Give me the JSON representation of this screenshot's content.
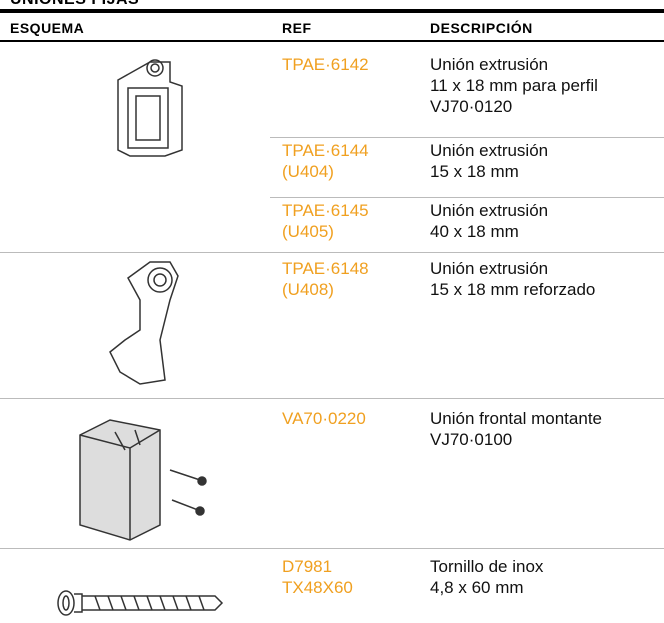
{
  "section_title": "UNIONES FIJAS",
  "table": {
    "headers": [
      "ESQUEMA",
      "REF",
      "DESCRIPCIÓN"
    ],
    "rows": [
      {
        "ref": [
          "TPAE·6142"
        ],
        "description": [
          "Unión extrusión",
          "11 x 18 mm para perfil",
          "VJ70·0120"
        ]
      },
      {
        "ref": [
          "TPAE·6144",
          "(U404)"
        ],
        "description": [
          "Unión extrusión",
          "15 x 18 mm"
        ]
      },
      {
        "ref": [
          "TPAE·6145",
          "(U405)"
        ],
        "description": [
          "Unión extrusión",
          "40 x 18 mm"
        ]
      },
      {
        "ref": [
          "TPAE·6148",
          "(U408)"
        ],
        "description": [
          "Unión extrusión",
          "15 x 18 mm reforzado"
        ]
      },
      {
        "ref": [
          "VA70·0220"
        ],
        "description": [
          "Unión frontal montante",
          "VJ70·0100"
        ]
      },
      {
        "ref": [
          "D7981",
          "TX48X60"
        ],
        "description": [
          "Tornillo de inox",
          "4,8 x 60 mm"
        ]
      }
    ]
  }
}
